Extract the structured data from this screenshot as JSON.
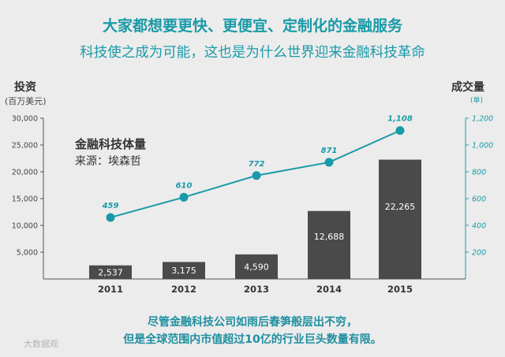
{
  "header": {
    "title": "大家都想要更快、更便宜、定制化的金融服务",
    "subtitle": "科技使之成为可能，这也是为什么世界迎来金融科技革命"
  },
  "left_axis": {
    "title": "投资",
    "unit": "(百万美元)"
  },
  "right_axis": {
    "title": "成交量",
    "unit": "(单)"
  },
  "legend": {
    "title": "金融科技体量",
    "source": "来源：埃森哲"
  },
  "footer": {
    "line1": "尽管金融科技公司如雨后春笋般层出不穷，",
    "line2": "但是全球范围内市值超过10亿的行业巨头数量有限。"
  },
  "watermark": "大数据观",
  "colors": {
    "bar": "#4a4a4a",
    "line": "#1a9aa8",
    "accent": "#1a9aa8"
  },
  "chart_data": {
    "type": "bar",
    "categories": [
      "2011",
      "2012",
      "2013",
      "2014",
      "2015"
    ],
    "series": [
      {
        "name": "投资",
        "kind": "bar",
        "axis": "left",
        "values": [
          2537,
          3175,
          4590,
          12688,
          22265
        ],
        "labels": [
          "2,537",
          "3,175",
          "4,590",
          "12,688",
          "22,265"
        ]
      },
      {
        "name": "成交量",
        "kind": "line",
        "axis": "right",
        "values": [
          459,
          610,
          772,
          871,
          1108
        ],
        "labels": [
          "459",
          "610",
          "772",
          "871",
          "1,108"
        ]
      }
    ],
    "left_ylim": [
      0,
      30000
    ],
    "left_ticks": [
      5000,
      10000,
      15000,
      20000,
      25000,
      30000
    ],
    "left_tick_labels": [
      "5,000",
      "10,000",
      "15,000",
      "20,000",
      "25,000",
      "30,000"
    ],
    "right_ylim": [
      0,
      1200
    ],
    "right_ticks": [
      200,
      400,
      600,
      800,
      1000,
      1200
    ],
    "right_tick_labels": [
      "200",
      "400",
      "600",
      "800",
      "1,000",
      "1,200"
    ],
    "grid": false
  }
}
